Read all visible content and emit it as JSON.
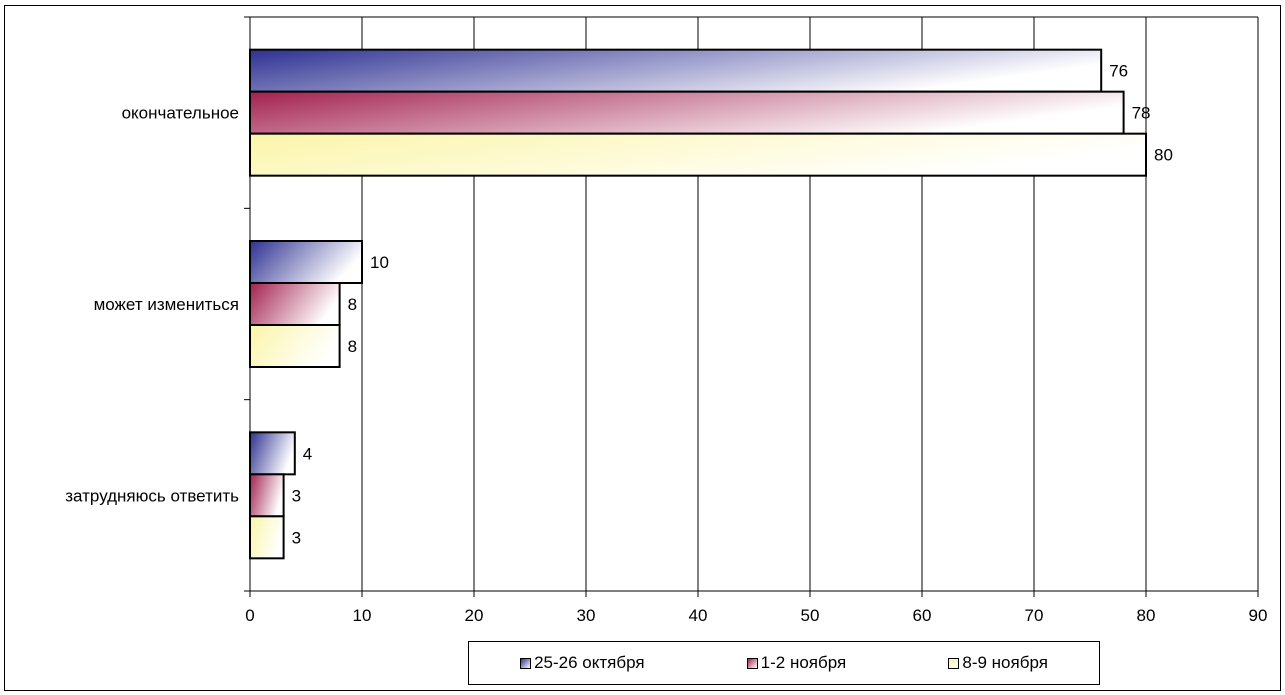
{
  "chart_data": {
    "type": "bar",
    "orientation": "horizontal",
    "title": "",
    "xlabel": "",
    "ylabel": "",
    "categories": [
      "окончательное",
      "может измениться",
      "затрудняюсь ответить"
    ],
    "series": [
      {
        "name": "25-26 октября",
        "values": [
          76,
          10,
          4
        ],
        "color": "#2e3192"
      },
      {
        "name": "1-2 ноября",
        "values": [
          78,
          8,
          3
        ],
        "color": "#a3214f"
      },
      {
        "name": "8-9 ноября",
        "values": [
          80,
          8,
          3
        ],
        "color": "#fbf5a8"
      }
    ],
    "data_labels": [
      [
        "76",
        "10",
        "4"
      ],
      [
        "78",
        "8",
        "3"
      ],
      [
        "80",
        "8",
        "3"
      ]
    ],
    "xlim": [
      0,
      90
    ],
    "x_ticks": [
      "0",
      "10",
      "20",
      "30",
      "40",
      "50",
      "60",
      "70",
      "80",
      "90"
    ],
    "grid": true,
    "legend_position": "bottom"
  }
}
